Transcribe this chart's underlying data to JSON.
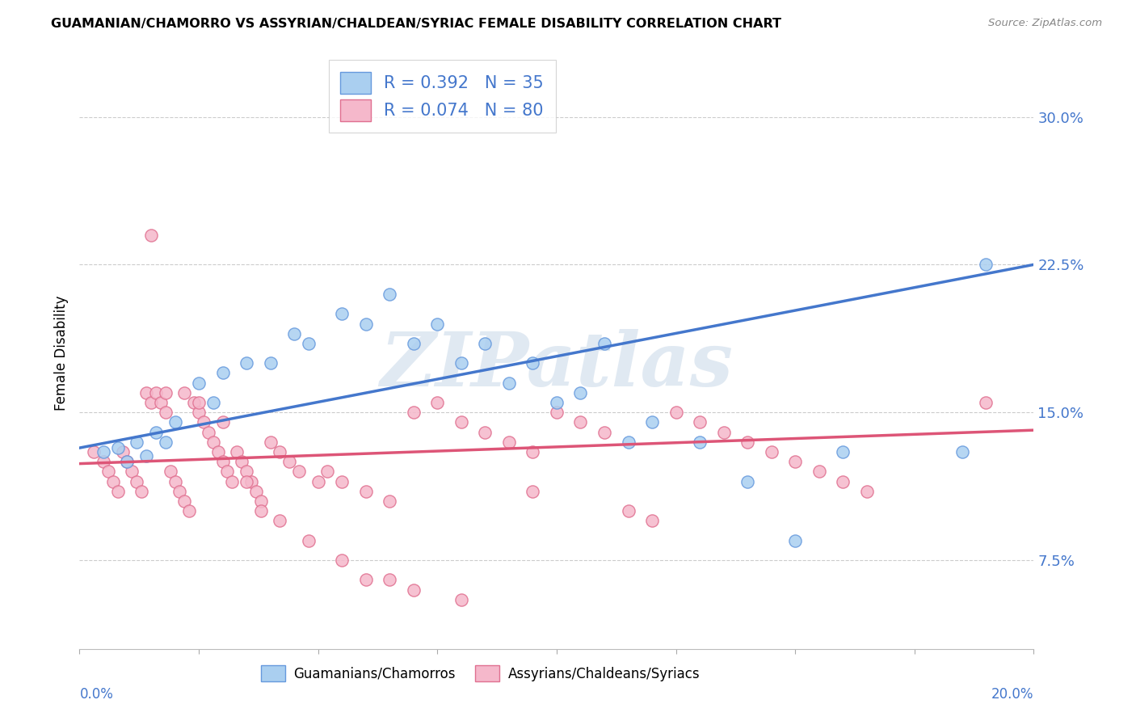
{
  "title": "GUAMANIAN/CHAMORRO VS ASSYRIAN/CHALDEAN/SYRIAC FEMALE DISABILITY CORRELATION CHART",
  "source": "Source: ZipAtlas.com",
  "ylabel": "Female Disability",
  "ytick_labels": [
    "7.5%",
    "15.0%",
    "22.5%",
    "30.0%"
  ],
  "ytick_values": [
    0.075,
    0.15,
    0.225,
    0.3
  ],
  "xlim": [
    0.0,
    0.2
  ],
  "ylim": [
    0.03,
    0.33
  ],
  "blue_R": 0.392,
  "blue_N": 35,
  "pink_R": 0.074,
  "pink_N": 80,
  "legend_label_blue": "Guamanians/Chamorros",
  "legend_label_pink": "Assyrians/Chaldeans/Syriacs",
  "blue_fill": "#AACFF0",
  "blue_edge": "#6699DD",
  "pink_fill": "#F5B8CB",
  "pink_edge": "#E07090",
  "blue_line_color": "#4477CC",
  "pink_line_color": "#DD5577",
  "watermark": "ZIPatlas",
  "blue_x": [
    0.005,
    0.008,
    0.01,
    0.012,
    0.014,
    0.016,
    0.018,
    0.02,
    0.025,
    0.028,
    0.03,
    0.035,
    0.04,
    0.045,
    0.048,
    0.055,
    0.06,
    0.065,
    0.07,
    0.075,
    0.08,
    0.085,
    0.09,
    0.095,
    0.1,
    0.105,
    0.11,
    0.115,
    0.12,
    0.13,
    0.14,
    0.15,
    0.16,
    0.185,
    0.19
  ],
  "blue_y": [
    0.13,
    0.132,
    0.125,
    0.135,
    0.128,
    0.14,
    0.135,
    0.145,
    0.165,
    0.155,
    0.17,
    0.175,
    0.175,
    0.19,
    0.185,
    0.2,
    0.195,
    0.21,
    0.185,
    0.195,
    0.175,
    0.185,
    0.165,
    0.175,
    0.155,
    0.16,
    0.185,
    0.135,
    0.145,
    0.135,
    0.115,
    0.085,
    0.13,
    0.13,
    0.225
  ],
  "pink_x": [
    0.003,
    0.005,
    0.006,
    0.007,
    0.008,
    0.009,
    0.01,
    0.011,
    0.012,
    0.013,
    0.014,
    0.015,
    0.016,
    0.017,
    0.018,
    0.019,
    0.02,
    0.021,
    0.022,
    0.023,
    0.024,
    0.025,
    0.026,
    0.027,
    0.028,
    0.029,
    0.03,
    0.031,
    0.032,
    0.033,
    0.034,
    0.035,
    0.036,
    0.037,
    0.038,
    0.04,
    0.042,
    0.044,
    0.046,
    0.05,
    0.052,
    0.055,
    0.06,
    0.065,
    0.07,
    0.075,
    0.08,
    0.085,
    0.09,
    0.095,
    0.1,
    0.105,
    0.11,
    0.115,
    0.12,
    0.125,
    0.13,
    0.135,
    0.14,
    0.145,
    0.15,
    0.155,
    0.16,
    0.165,
    0.015,
    0.018,
    0.022,
    0.025,
    0.03,
    0.035,
    0.038,
    0.042,
    0.048,
    0.055,
    0.06,
    0.065,
    0.07,
    0.08,
    0.19,
    0.095
  ],
  "pink_y": [
    0.13,
    0.125,
    0.12,
    0.115,
    0.11,
    0.13,
    0.125,
    0.12,
    0.115,
    0.11,
    0.16,
    0.155,
    0.16,
    0.155,
    0.15,
    0.12,
    0.115,
    0.11,
    0.105,
    0.1,
    0.155,
    0.15,
    0.145,
    0.14,
    0.135,
    0.13,
    0.125,
    0.12,
    0.115,
    0.13,
    0.125,
    0.12,
    0.115,
    0.11,
    0.105,
    0.135,
    0.13,
    0.125,
    0.12,
    0.115,
    0.12,
    0.115,
    0.11,
    0.105,
    0.15,
    0.155,
    0.145,
    0.14,
    0.135,
    0.13,
    0.15,
    0.145,
    0.14,
    0.1,
    0.095,
    0.15,
    0.145,
    0.14,
    0.135,
    0.13,
    0.125,
    0.12,
    0.115,
    0.11,
    0.24,
    0.16,
    0.16,
    0.155,
    0.145,
    0.115,
    0.1,
    0.095,
    0.085,
    0.075,
    0.065,
    0.065,
    0.06,
    0.055,
    0.155,
    0.11
  ]
}
